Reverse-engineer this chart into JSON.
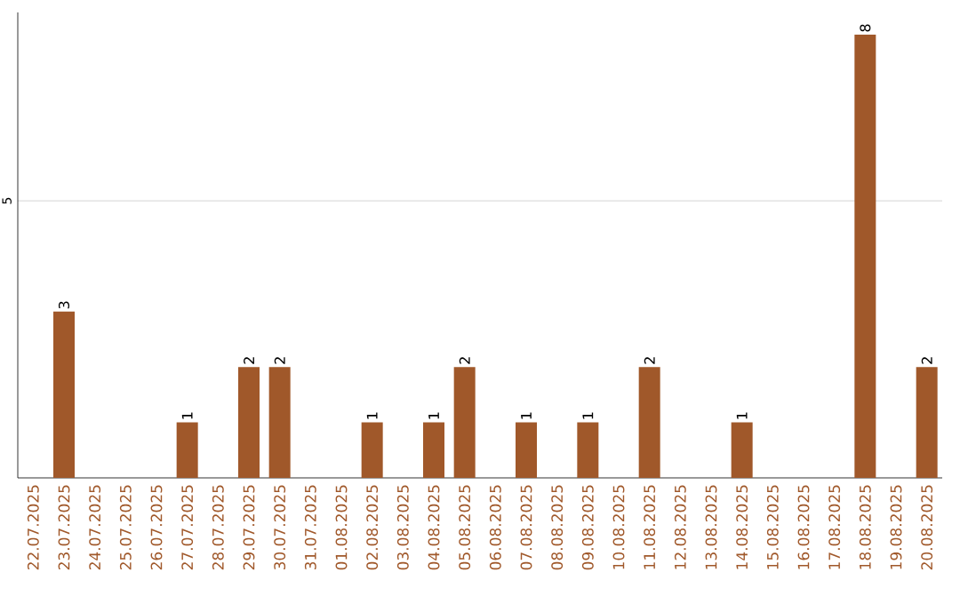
{
  "chart_data": {
    "type": "bar",
    "categories": [
      "22.07.2025",
      "23.07.2025",
      "24.07.2025",
      "25.07.2025",
      "26.07.2025",
      "27.07.2025",
      "28.07.2025",
      "29.07.2025",
      "30.07.2025",
      "31.07.2025",
      "01.08.2025",
      "02.08.2025",
      "03.08.2025",
      "04.08.2025",
      "05.08.2025",
      "06.08.2025",
      "07.08.2025",
      "08.08.2025",
      "09.08.2025",
      "10.08.2025",
      "11.08.2025",
      "12.08.2025",
      "13.08.2025",
      "14.08.2025",
      "15.08.2025",
      "16.08.2025",
      "17.08.2025",
      "18.08.2025",
      "19.08.2025",
      "20.08.2025"
    ],
    "values": [
      0,
      3,
      0,
      0,
      0,
      1,
      0,
      2,
      2,
      0,
      0,
      1,
      0,
      1,
      2,
      0,
      1,
      0,
      1,
      0,
      2,
      0,
      0,
      1,
      0,
      0,
      0,
      8,
      0,
      2
    ],
    "value_labels": [
      null,
      "3",
      null,
      null,
      null,
      "1",
      null,
      "2",
      "2",
      null,
      null,
      "1",
      null,
      "1",
      "2",
      null,
      "1",
      null,
      "1",
      null,
      "2",
      null,
      null,
      "1",
      null,
      null,
      null,
      "8",
      null,
      "2"
    ],
    "color": "#a0582a",
    "ylim": [
      0,
      8.4
    ],
    "yticks": [
      5
    ],
    "grid": "y"
  }
}
